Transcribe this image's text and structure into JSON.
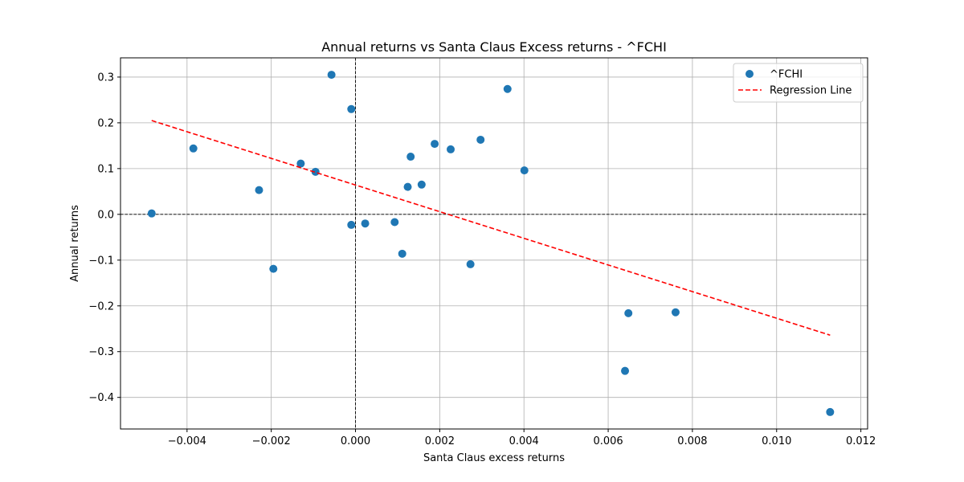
{
  "chart_data": {
    "type": "scatter",
    "title": "Annual returns vs Santa Claus Excess returns - ^FCHI",
    "xlabel": "Santa Claus excess returns",
    "ylabel": "Annual returns",
    "xlim": [
      -0.00558,
      0.01216
    ],
    "ylim": [
      -0.469,
      0.342
    ],
    "grid": true,
    "legend_position": "top-right",
    "x_ticks": [
      {
        "value": -0.004,
        "label": "−0.004"
      },
      {
        "value": -0.002,
        "label": "−0.002"
      },
      {
        "value": 0.0,
        "label": "0.000"
      },
      {
        "value": 0.002,
        "label": "0.002"
      },
      {
        "value": 0.004,
        "label": "0.004"
      },
      {
        "value": 0.006,
        "label": "0.006"
      },
      {
        "value": 0.008,
        "label": "0.008"
      },
      {
        "value": 0.01,
        "label": "0.010"
      },
      {
        "value": 0.012,
        "label": "0.012"
      }
    ],
    "y_ticks": [
      {
        "value": 0.3,
        "label": "0.3"
      },
      {
        "value": 0.2,
        "label": "0.2"
      },
      {
        "value": 0.1,
        "label": "0.1"
      },
      {
        "value": 0.0,
        "label": "0.0"
      },
      {
        "value": -0.1,
        "label": "−0.1"
      },
      {
        "value": -0.2,
        "label": "−0.2"
      },
      {
        "value": -0.3,
        "label": "−0.3"
      },
      {
        "value": -0.4,
        "label": "−0.4"
      }
    ],
    "reference_lines": {
      "x": 0,
      "y": 0
    },
    "series": [
      {
        "name": "^FCHI",
        "kind": "points",
        "color": "#1f77b4",
        "points": [
          [
            -0.00484,
            0.002
          ],
          [
            -0.00385,
            0.144
          ],
          [
            -0.00229,
            0.053
          ],
          [
            -0.00195,
            -0.119
          ],
          [
            -0.0013,
            0.111
          ],
          [
            -0.00095,
            0.093
          ],
          [
            -0.00057,
            0.305
          ],
          [
            -0.0001,
            0.23
          ],
          [
            -0.0001,
            -0.023
          ],
          [
            0.00023,
            -0.02
          ],
          [
            0.00093,
            -0.017
          ],
          [
            0.00111,
            -0.086
          ],
          [
            0.00124,
            0.06
          ],
          [
            0.00131,
            0.126
          ],
          [
            0.00157,
            0.065
          ],
          [
            0.00188,
            0.154
          ],
          [
            0.00226,
            0.142
          ],
          [
            0.00273,
            -0.109
          ],
          [
            0.00297,
            0.163
          ],
          [
            0.00361,
            0.274
          ],
          [
            0.00401,
            0.096
          ],
          [
            0.0064,
            -0.342
          ],
          [
            0.00648,
            -0.216
          ],
          [
            0.0076,
            -0.214
          ],
          [
            0.01127,
            -0.432
          ]
        ]
      },
      {
        "name": "Regression Line",
        "kind": "line",
        "color": "#ff0000",
        "dashed": true,
        "points": [
          [
            -0.00484,
            0.205
          ],
          [
            0.01127,
            -0.264
          ]
        ]
      }
    ]
  }
}
